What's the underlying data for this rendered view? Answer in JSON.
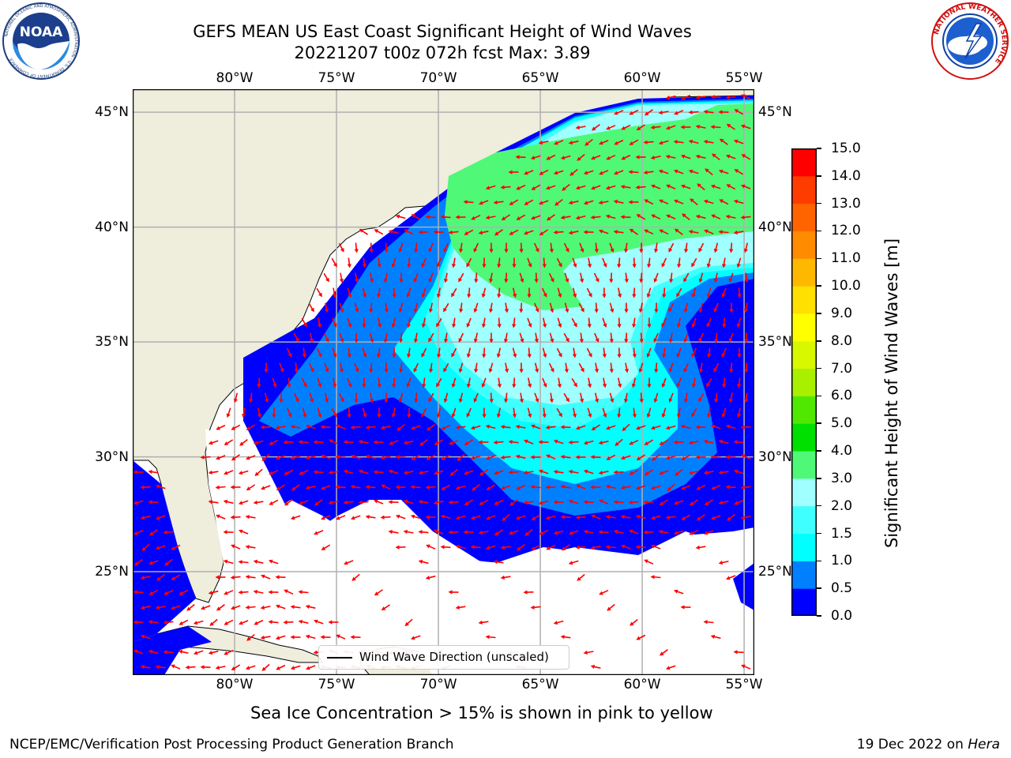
{
  "header": {
    "title_line1": "GEFS MEAN US East Coast Significant Height of Wind Waves",
    "title_line2": "20221207 t00z 072h fcst   Max: 3.89"
  },
  "logos": {
    "left": {
      "name": "noaa-logo",
      "text": "NOAA",
      "ring_text": "NATIONAL OCEANIC AND ATMOSPHERIC ADMINISTRATION · U.S. DEPARTMENT OF COMMERCE"
    },
    "right": {
      "name": "nws-logo",
      "ring_text": "NATIONAL WEATHER SERVICE"
    }
  },
  "map": {
    "lon_labels": [
      "80°W",
      "75°W",
      "70°W",
      "65°W",
      "60°W",
      "55°W"
    ],
    "lat_labels": [
      "45°N",
      "40°N",
      "35°N",
      "30°N",
      "25°N"
    ],
    "extent": {
      "lon_min": -85,
      "lon_max": -54.5,
      "lat_min": 20.5,
      "lat_max": 46
    },
    "gridlines": true,
    "land_color": "#efeddc",
    "ocean_missing_color": "#ffffff",
    "arrow_color": "#ff0000",
    "legend": {
      "label": "Wind Wave Direction (unscaled)",
      "placement": "lower-center"
    }
  },
  "colorbar": {
    "label": "Significant Height of Wind Waves [m]",
    "ticks": [
      "15.0",
      "14.0",
      "13.0",
      "12.0",
      "11.0",
      "10.0",
      "9.0",
      "8.0",
      "7.0",
      "6.0",
      "5.0",
      "4.0",
      "3.0",
      "2.0",
      "1.5",
      "1.0",
      "0.5",
      "0.0"
    ],
    "colors": [
      "#0000ff",
      "#0080ff",
      "#00ffff",
      "#40ffff",
      "#a0ffff",
      "#50f878",
      "#00e000",
      "#50e800",
      "#a8f000",
      "#d8f800",
      "#ffff00",
      "#ffe000",
      "#ffb800",
      "#ff8c00",
      "#ff6400",
      "#ff3c00",
      "#ff0000"
    ]
  },
  "notes": {
    "sea_ice": "Sea Ice Concentration > 15% is shown in pink to yellow"
  },
  "footer": {
    "left": "NCEP/EMC/Verification Post Processing Product Generation Branch",
    "right_date": "19 Dec 2022 on ",
    "right_machine": "Hera"
  }
}
